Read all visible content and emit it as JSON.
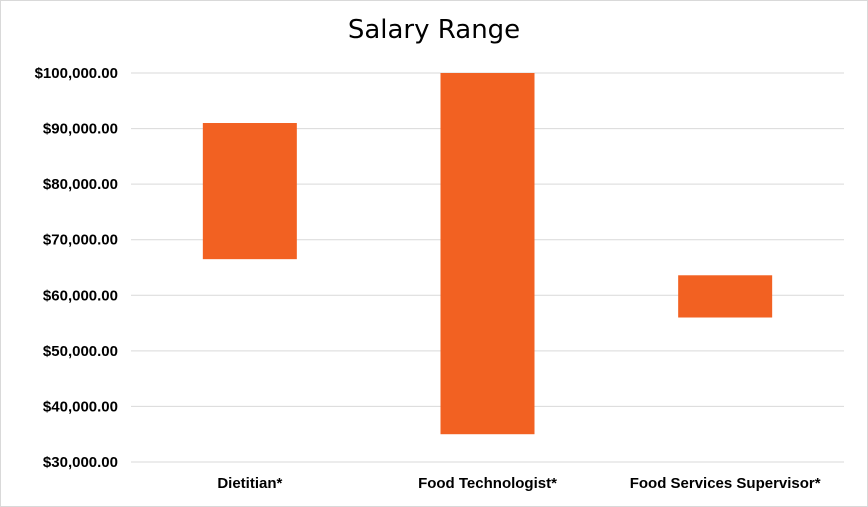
{
  "chart_data": {
    "type": "bar",
    "subtype": "floating-range",
    "title": "Salary Range",
    "xlabel": "",
    "ylabel": "",
    "categories": [
      "Dietitian*",
      "Food Technologist*",
      "Food Services Supervisor*"
    ],
    "series": [
      {
        "low": [
          66500,
          35000,
          56000
        ],
        "high": [
          91000,
          100000,
          63600
        ]
      }
    ],
    "ylim": [
      30000,
      100000
    ],
    "yticks": [
      30000,
      40000,
      50000,
      60000,
      70000,
      80000,
      90000,
      100000
    ],
    "ytick_labels": [
      "$30,000.00",
      "$40,000.00",
      "$50,000.00",
      "$60,000.00",
      "$70,000.00",
      "$80,000.00",
      "$90,000.00",
      "$100,000.00"
    ],
    "grid": true,
    "legend": "none",
    "bar_color": "#f26122",
    "grid_color": "#d9d9d9"
  }
}
